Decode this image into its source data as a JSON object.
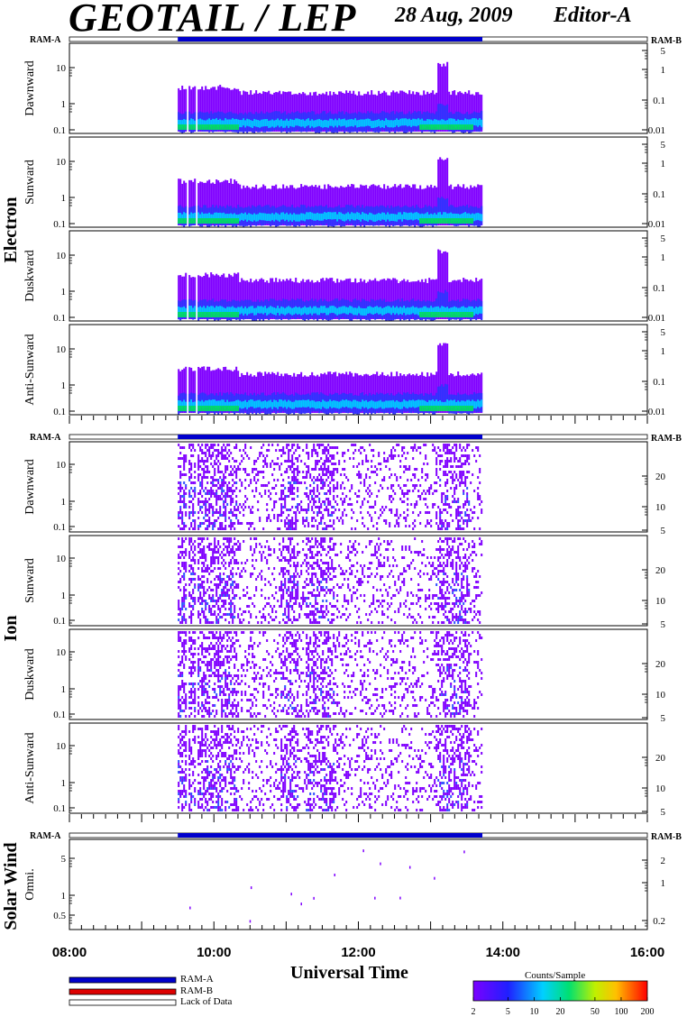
{
  "header": {
    "title": "GEOTAIL / LEP",
    "date": "28 Aug, 2009",
    "editor": "Editor-A"
  },
  "colors": {
    "ram_a": "#0000cc",
    "ram_b": "#dd0000",
    "spectrogram_low": "#8000ff",
    "spectrogram_mid": "#00c8ff",
    "spectrogram_high": "#00e060"
  },
  "legend": {
    "items": [
      {
        "label": "RAM-A",
        "color": "#0000cc"
      },
      {
        "label": "RAM-B",
        "color": "#dd0000"
      },
      {
        "label": "Lack of Data",
        "color": "#ffffff"
      }
    ]
  },
  "colorbar": {
    "title": "Counts/Sample",
    "ticks": [
      "2",
      "5",
      "10",
      "20",
      "50",
      "100",
      "200"
    ]
  },
  "chart_data": {
    "type": "heatmap",
    "xlabel": "Universal Time",
    "x_ticks": [
      "08:00",
      "10:00",
      "12:00",
      "14:00",
      "16:00"
    ],
    "xlim": [
      "08:00",
      "16:00"
    ],
    "data_coverage_utc": [
      "09:30",
      "13:43"
    ],
    "ram_a_coverage_utc": [
      "09:30",
      "13:43"
    ],
    "groups": [
      {
        "name": "Electron",
        "ram_left_label": "RAM-A",
        "ram_right_label": "RAM-B",
        "panels": [
          {
            "label": "Dawnward",
            "left_ticks": [
              "10",
              "1",
              "0.1"
            ],
            "right_ticks": [
              "5",
              "1",
              "0.1",
              "0.01"
            ],
            "left_scale": "log",
            "right_scale": "log"
          },
          {
            "label": "Sunward",
            "left_ticks": [
              "10",
              "1",
              "0.1"
            ],
            "right_ticks": [
              "5",
              "1",
              "0.1",
              "0.01"
            ],
            "left_scale": "log",
            "right_scale": "log"
          },
          {
            "label": "Duskward",
            "left_ticks": [
              "10",
              "1",
              "0.1"
            ],
            "right_ticks": [
              "5",
              "1",
              "0.1",
              "0.01"
            ],
            "left_scale": "log",
            "right_scale": "log"
          },
          {
            "label": "Anti-Sunward",
            "left_ticks": [
              "10",
              "1",
              "0.1"
            ],
            "right_ticks": [
              "5",
              "1",
              "0.1",
              "0.01"
            ],
            "left_scale": "log",
            "right_scale": "log"
          }
        ]
      },
      {
        "name": "Ion",
        "ram_left_label": "RAM-A",
        "ram_right_label": "RAM-B",
        "panels": [
          {
            "label": "Dawnward",
            "left_ticks": [
              "10",
              "1",
              "0.1"
            ],
            "right_ticks": [
              "20",
              "10",
              "5"
            ],
            "left_scale": "log",
            "right_scale": "log"
          },
          {
            "label": "Sunward",
            "left_ticks": [
              "10",
              "1",
              "0.1"
            ],
            "right_ticks": [
              "20",
              "10",
              "5"
            ],
            "left_scale": "log",
            "right_scale": "log"
          },
          {
            "label": "Duskward",
            "left_ticks": [
              "10",
              "1",
              "0.1"
            ],
            "right_ticks": [
              "20",
              "10",
              "5"
            ],
            "left_scale": "log",
            "right_scale": "log"
          },
          {
            "label": "Anti-Sunward",
            "left_ticks": [
              "10",
              "1",
              "0.1"
            ],
            "right_ticks": [
              "20",
              "10",
              "5"
            ],
            "left_scale": "log",
            "right_scale": "log"
          }
        ]
      },
      {
        "name": "Solar Wind",
        "ram_left_label": "RAM-A",
        "ram_right_label": "RAM-B",
        "panels": [
          {
            "label": "Omni.",
            "left_ticks": [
              "5",
              "1",
              "0.5"
            ],
            "right_ticks": [
              "2",
              "1",
              "0.2"
            ],
            "left_scale": "log",
            "right_scale": "log"
          }
        ]
      }
    ]
  }
}
